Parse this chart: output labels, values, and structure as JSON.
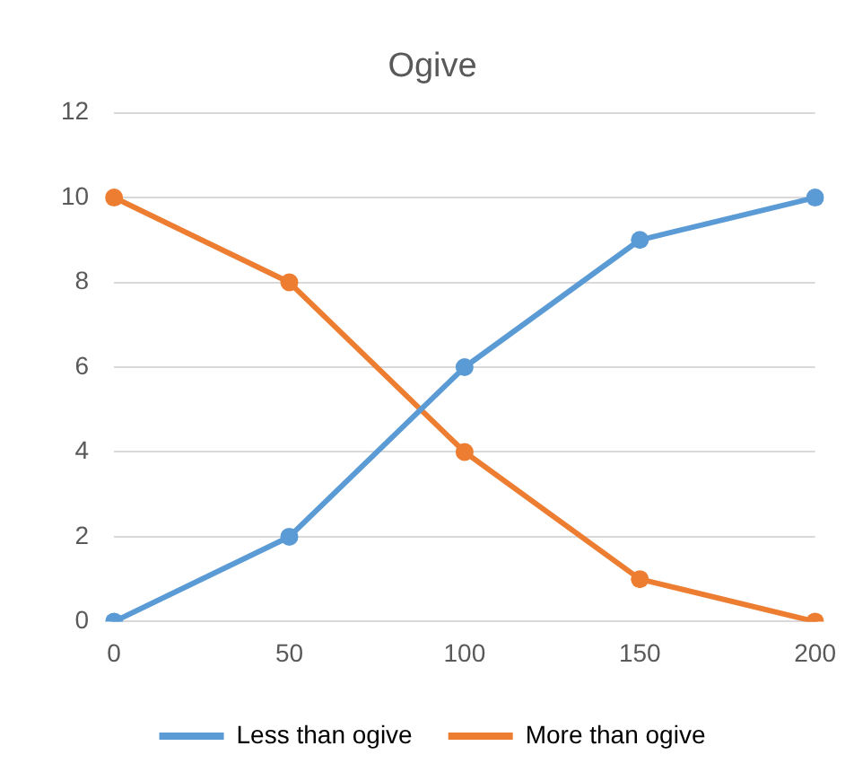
{
  "chart_data": {
    "type": "line",
    "title": "Ogive",
    "categories": [
      "0",
      "50",
      "100",
      "150",
      "200"
    ],
    "series": [
      {
        "name": "Less than ogive",
        "color": "#5b9bd5",
        "values": [
          0,
          2,
          6,
          9,
          10
        ]
      },
      {
        "name": "More than ogive",
        "color": "#ed7d31",
        "values": [
          10,
          8,
          4,
          1,
          0
        ]
      }
    ],
    "ylim": [
      0,
      12
    ],
    "yticks": [
      0,
      2,
      4,
      6,
      8,
      10,
      12
    ],
    "grid": "y",
    "legend": "bottom",
    "marker": "circle",
    "line_style": "solid"
  }
}
